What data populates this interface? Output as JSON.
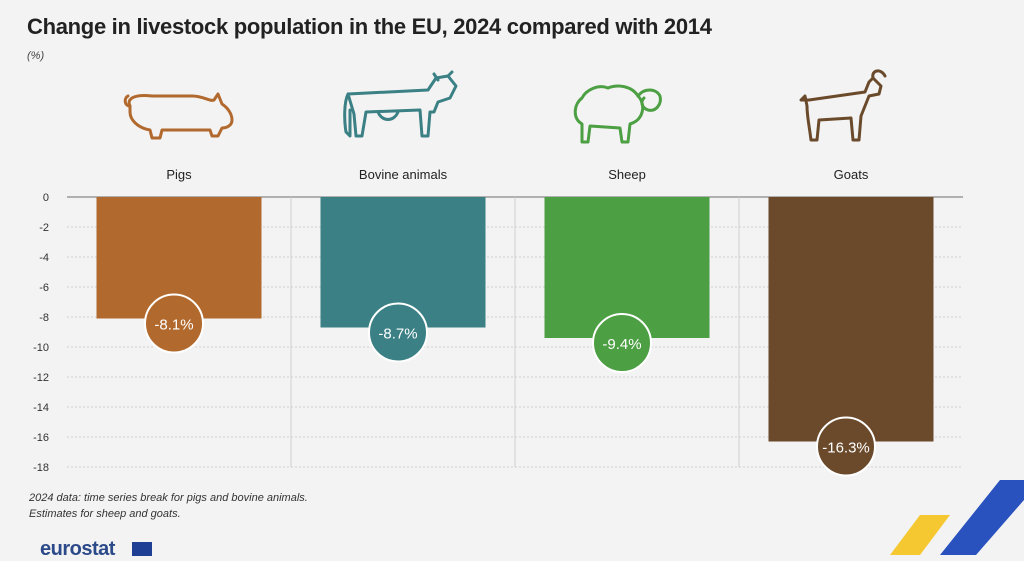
{
  "title": "Change in livestock population in the EU, 2024 compared with 2014",
  "unit": "(%)",
  "notes": [
    "2024 data: time series break for pigs and bovine animals.",
    "Estimates for sheep and goats."
  ],
  "logo": "eurostat",
  "colors": {
    "pigs": "#b2692e",
    "bovine": "#3a8085",
    "sheep": "#4c9f43",
    "goats": "#6b4a2b"
  },
  "icons": [
    "pig-icon",
    "cow-icon",
    "sheep-icon",
    "goat-icon"
  ],
  "chart_data": {
    "type": "bar",
    "categories": [
      "Pigs",
      "Bovine animals",
      "Sheep",
      "Goats"
    ],
    "values": [
      -8.1,
      -8.7,
      -9.4,
      -16.3
    ],
    "value_labels": [
      "-8.1%",
      "-8.7%",
      "-9.4%",
      "-16.3%"
    ],
    "ylim": [
      -18,
      0
    ],
    "yticks": [
      0,
      -2,
      -4,
      -6,
      -8,
      -10,
      -12,
      -14,
      -16,
      -18
    ],
    "grid": true
  }
}
